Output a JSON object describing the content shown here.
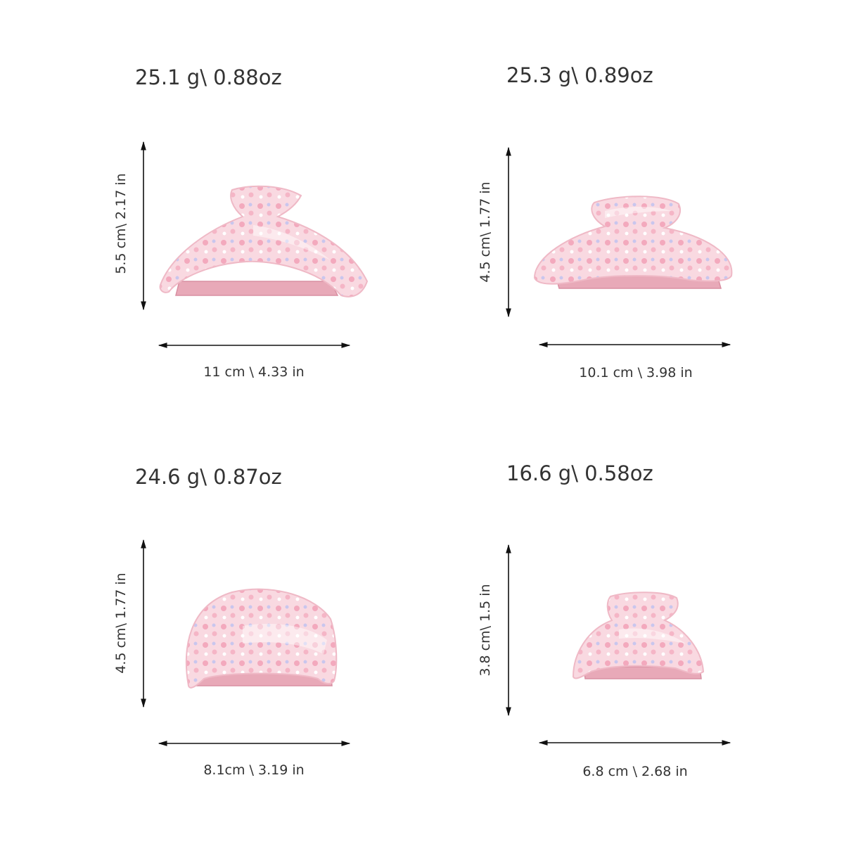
{
  "items": [
    {
      "weight": "25.1 g\\ 0.88oz",
      "height": "5.5 cm\\ 2.17 in",
      "width": "11 cm \\ 4.33 in"
    },
    {
      "weight": "25.3 g\\ 0.89oz",
      "height": "4.5 cm\\ 1.77 in",
      "width": "10.1 cm \\ 3.98 in"
    },
    {
      "weight": "24.6 g\\ 0.87oz",
      "height": "4.5 cm\\ 1.77 in",
      "width": "8.1cm \\ 3.19 in"
    },
    {
      "weight": "16.6 g\\ 0.58oz",
      "height": "3.8 cm\\ 1.5 in",
      "width": "6.8 cm \\ 2.68 in"
    }
  ]
}
